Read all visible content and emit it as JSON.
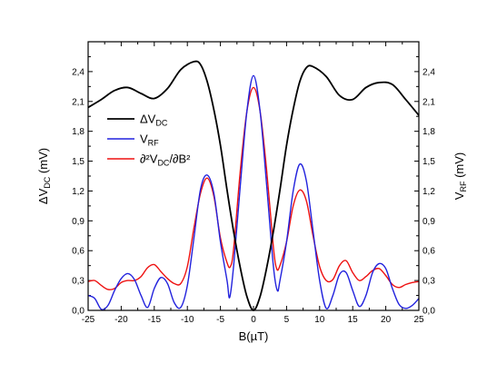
{
  "chart_data": {
    "type": "line",
    "xlabel": "B(µT)",
    "ylabel_left": {
      "main": "ΔV",
      "sub": "DC",
      "unit": " (mV)"
    },
    "ylabel_right": {
      "main": "V",
      "sub": "RF",
      "unit": " (mV)"
    },
    "xlim": [
      -25,
      25
    ],
    "ylim": [
      0,
      2.7
    ],
    "xticks": [
      -25,
      -20,
      -15,
      -10,
      -5,
      0,
      5,
      10,
      15,
      20,
      25
    ],
    "yticks": [
      0,
      0.3,
      0.6,
      0.9,
      1.2,
      1.5,
      1.8,
      2.1,
      2.4
    ],
    "ytick_labels": [
      "0,0",
      "0,3",
      "0,6",
      "0,9",
      "1,2",
      "1,5",
      "1,8",
      "2,1",
      "2,4"
    ],
    "legend_position": "upper-left",
    "series": [
      {
        "key": "dvdc",
        "legend": {
          "main": "ΔV",
          "sub": "DC",
          "tail": ""
        },
        "color": "#000000",
        "x": [
          -25,
          -23,
          -21,
          -19,
          -17,
          -15,
          -13,
          -11,
          -9,
          -8,
          -7,
          -6,
          -5,
          -4,
          -3,
          -2,
          -1,
          0,
          1,
          2,
          3,
          4,
          5,
          6,
          7,
          8,
          9,
          11,
          13,
          15,
          17,
          19,
          21,
          23,
          25
        ],
        "y": [
          2.04,
          2.12,
          2.21,
          2.24,
          2.18,
          2.13,
          2.23,
          2.42,
          2.5,
          2.47,
          2.3,
          2.02,
          1.66,
          1.21,
          0.79,
          0.43,
          0.14,
          0.0,
          0.14,
          0.43,
          0.79,
          1.21,
          1.66,
          2.02,
          2.3,
          2.44,
          2.45,
          2.35,
          2.16,
          2.12,
          2.24,
          2.29,
          2.27,
          2.12,
          1.96
        ]
      },
      {
        "key": "vrf",
        "legend": {
          "main": "V",
          "sub": "RF",
          "tail": ""
        },
        "color": "#2222dd",
        "x": [
          -25,
          -24,
          -23,
          -22,
          -21,
          -20,
          -19,
          -18,
          -17,
          -16,
          -15,
          -14,
          -13,
          -12,
          -11,
          -10,
          -9,
          -8,
          -7,
          -6,
          -5,
          -4,
          -3.6,
          -3,
          -2,
          -1,
          0,
          1,
          2,
          3,
          3.6,
          4,
          5,
          6,
          7,
          8,
          9,
          10,
          11,
          12,
          13,
          14,
          15,
          16,
          17,
          18,
          19,
          20,
          21,
          22,
          23,
          24,
          25
        ],
        "y": [
          0.15,
          0.12,
          0.01,
          0.05,
          0.2,
          0.32,
          0.37,
          0.31,
          0.15,
          0.03,
          0.22,
          0.33,
          0.27,
          0.08,
          0.03,
          0.25,
          0.73,
          1.22,
          1.36,
          1.18,
          0.69,
          0.3,
          0.13,
          0.45,
          1.25,
          2.0,
          2.36,
          2.0,
          1.25,
          0.45,
          0.2,
          0.3,
          0.69,
          1.2,
          1.47,
          1.3,
          0.8,
          0.3,
          0.02,
          0.15,
          0.36,
          0.38,
          0.2,
          0.04,
          0.15,
          0.38,
          0.47,
          0.42,
          0.22,
          0.06,
          0.02,
          0.05,
          0.12
        ]
      },
      {
        "key": "d2v",
        "legend": {
          "main": "∂²V",
          "sub": "DC",
          "tail": "/∂B²"
        },
        "color": "#ee1111",
        "x": [
          -25,
          -24,
          -23,
          -22,
          -21,
          -20,
          -19,
          -18,
          -17,
          -16,
          -15,
          -14,
          -13,
          -12,
          -11,
          -10,
          -9,
          -8,
          -7,
          -6,
          -5,
          -4,
          -3.5,
          -3,
          -2,
          -1,
          0,
          1,
          2,
          3,
          3.5,
          4,
          5,
          6,
          7,
          8,
          9,
          10,
          11,
          12,
          13,
          14,
          15,
          16,
          17,
          18,
          19,
          20,
          21,
          22,
          23,
          24,
          25
        ],
        "y": [
          0.29,
          0.3,
          0.25,
          0.21,
          0.22,
          0.28,
          0.3,
          0.3,
          0.34,
          0.43,
          0.46,
          0.39,
          0.32,
          0.27,
          0.27,
          0.44,
          0.83,
          1.18,
          1.33,
          1.15,
          0.73,
          0.48,
          0.44,
          0.62,
          1.4,
          2.0,
          2.24,
          2.0,
          1.4,
          0.64,
          0.42,
          0.45,
          0.69,
          1.05,
          1.21,
          1.1,
          0.75,
          0.44,
          0.3,
          0.31,
          0.45,
          0.5,
          0.38,
          0.3,
          0.34,
          0.4,
          0.42,
          0.35,
          0.26,
          0.23,
          0.26,
          0.28,
          0.29
        ]
      }
    ]
  }
}
